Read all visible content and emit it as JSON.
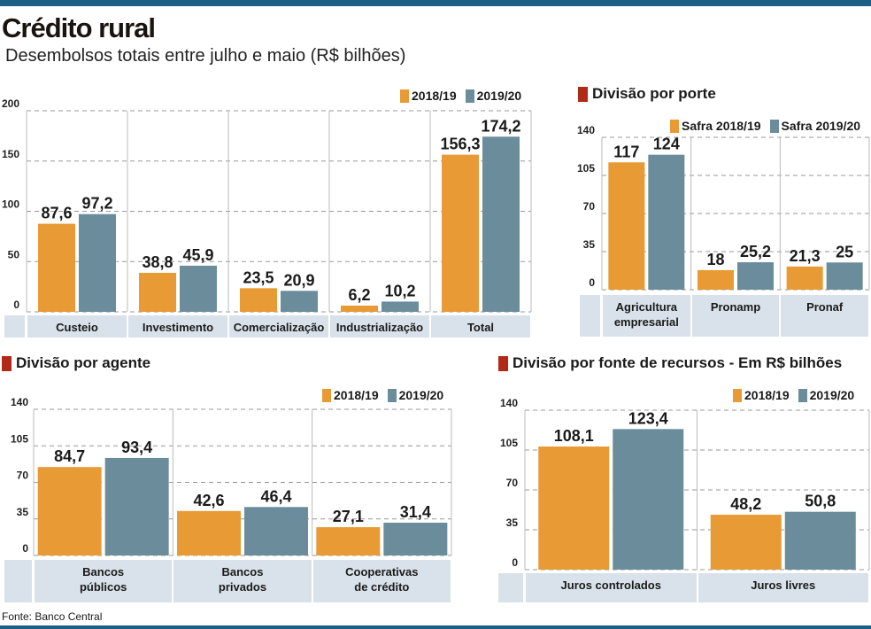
{
  "title": "Crédito rural",
  "subtitle": "Desembolsos totais entre julho e maio (R$ bilhões)",
  "footer": "Fonte: Banco Central",
  "colors": {
    "series1": "#e89a35",
    "series2": "#6b8c9b",
    "accent": "#b02a17",
    "band": "#1b5f87",
    "label_row": "#d9e2ea"
  },
  "chart_data": [
    {
      "type": "bar",
      "title": "",
      "categories": [
        "Custeio",
        "Investimento",
        "Comercialização",
        "Industrialização",
        "Total"
      ],
      "series": [
        {
          "name": "2018/19",
          "values": [
            87.6,
            38.8,
            23.5,
            6.2,
            156.3
          ],
          "labels": [
            "87,6",
            "38,8",
            "23,5",
            "6,2",
            "156,3"
          ]
        },
        {
          "name": "2019/20",
          "values": [
            97.2,
            45.9,
            20.9,
            10.2,
            174.2
          ],
          "labels": [
            "97,2",
            "45,9",
            "20,9",
            "10,2",
            "174,2"
          ]
        }
      ],
      "yticks": [
        0,
        50,
        100,
        150,
        200
      ],
      "ylim": [
        0,
        200
      ],
      "grid": true,
      "legend": "top-right"
    },
    {
      "type": "bar",
      "title": "Divisão por porte",
      "categories": [
        "Agricultura\nempresarial",
        "Pronamp",
        "Pronaf"
      ],
      "series": [
        {
          "name": "Safra 2018/19",
          "values": [
            117,
            18,
            21.3
          ],
          "labels": [
            "117",
            "18",
            "21,3"
          ]
        },
        {
          "name": "Safra 2019/20",
          "values": [
            124,
            25.2,
            25
          ],
          "labels": [
            "124",
            "25,2",
            "25"
          ]
        }
      ],
      "yticks": [
        0,
        35,
        70,
        105,
        140
      ],
      "ylim": [
        0,
        140
      ],
      "grid": true,
      "legend": "top-right"
    },
    {
      "type": "bar",
      "title": "Divisão por agente",
      "categories": [
        "Bancos\npúblicos",
        "Bancos\nprivados",
        "Cooperativas\nde crédito"
      ],
      "series": [
        {
          "name": "2018/19",
          "values": [
            84.7,
            42.6,
            27.1
          ],
          "labels": [
            "84,7",
            "42,6",
            "27,1"
          ]
        },
        {
          "name": "2019/20",
          "values": [
            93.4,
            46.4,
            31.4
          ],
          "labels": [
            "93,4",
            "46,4",
            "31,4"
          ]
        }
      ],
      "yticks": [
        0,
        35,
        70,
        105,
        140
      ],
      "ylim": [
        0,
        140
      ],
      "grid": true,
      "legend": "top-right"
    },
    {
      "type": "bar",
      "title": "Divisão por fonte de recursos - Em R$ bilhões",
      "categories": [
        "Juros controlados",
        "Juros livres"
      ],
      "series": [
        {
          "name": "2018/19",
          "values": [
            108.1,
            48.2
          ],
          "labels": [
            "108,1",
            "48,2"
          ]
        },
        {
          "name": "2019/20",
          "values": [
            123.4,
            50.8
          ],
          "labels": [
            "123,4",
            "50,8"
          ]
        }
      ],
      "yticks": [
        0,
        35,
        70,
        105,
        140
      ],
      "ylim": [
        0,
        140
      ],
      "grid": true,
      "legend": "top-right"
    }
  ]
}
